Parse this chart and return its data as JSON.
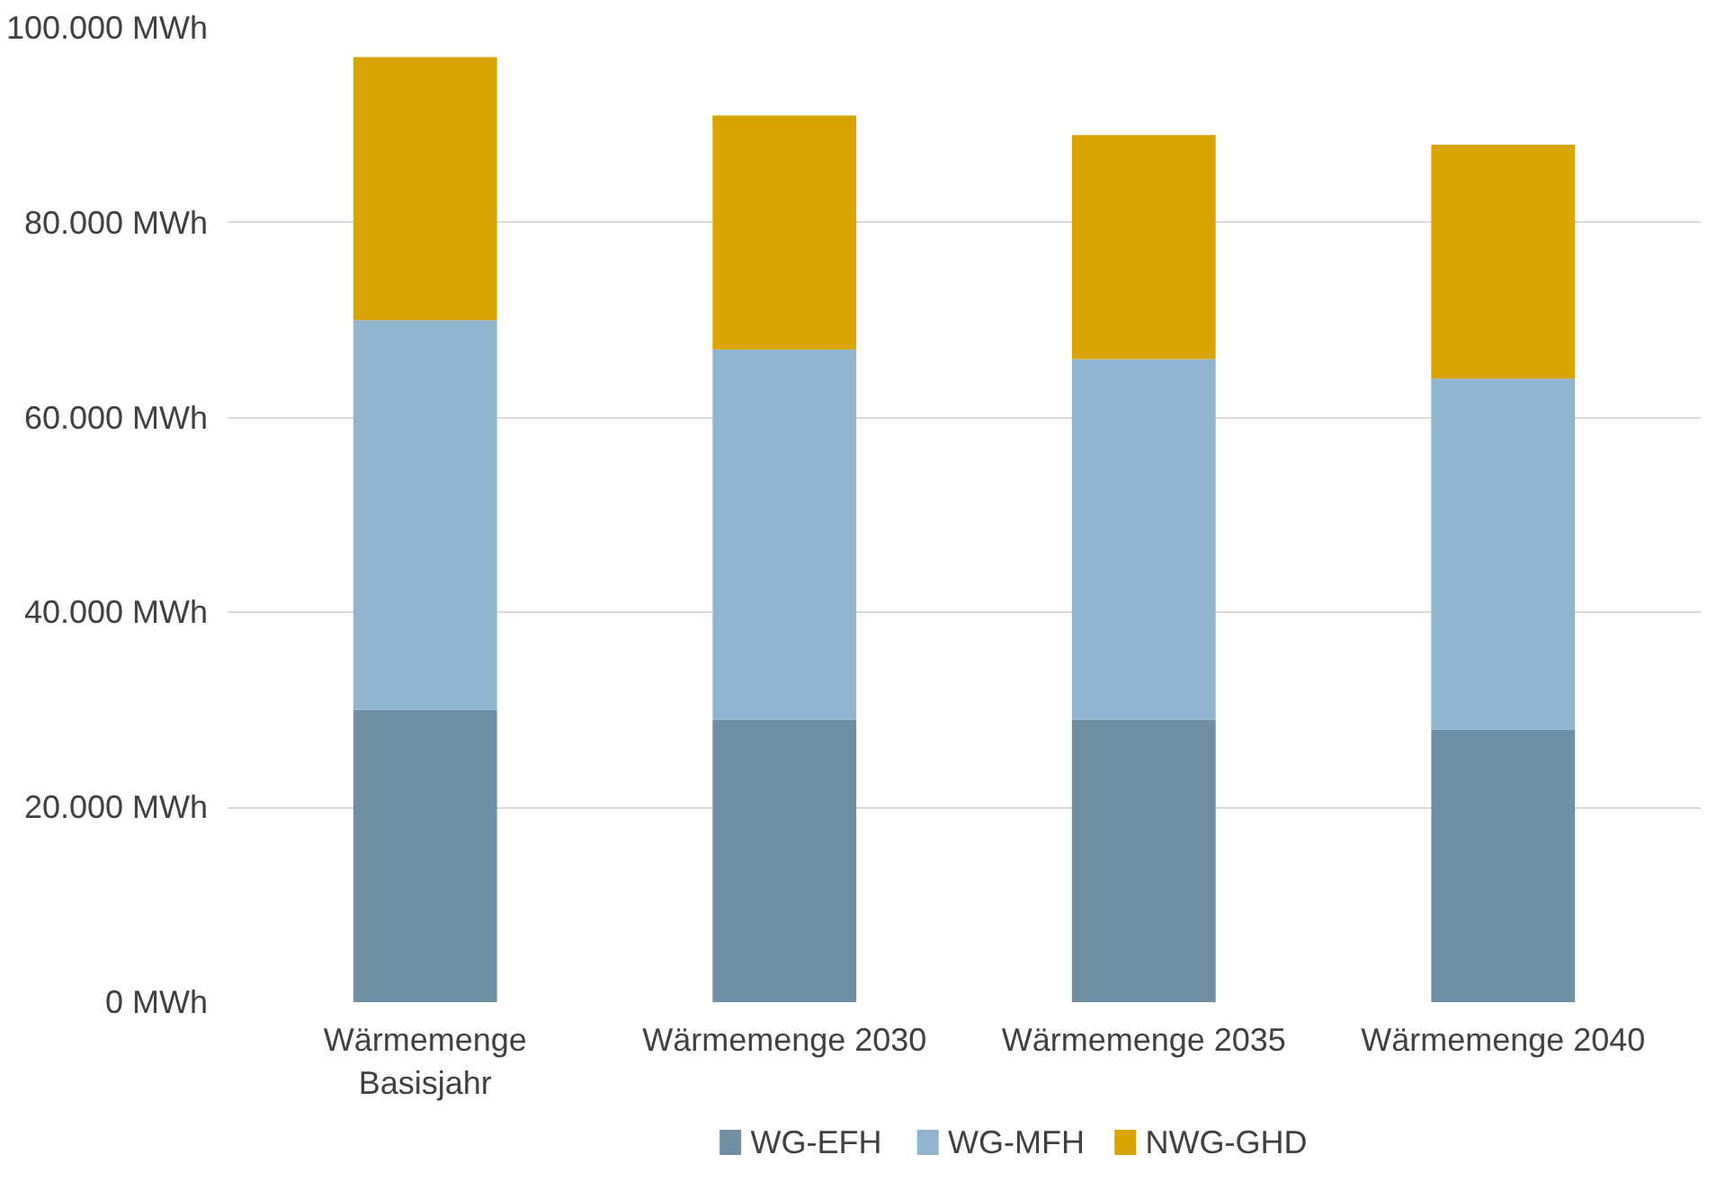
{
  "chart_data": {
    "type": "bar",
    "stacked": true,
    "categories": [
      "Wärmemenge\nBasisjahr",
      "Wärmemenge 2030",
      "Wärmemenge 2035",
      "Wärmemenge 2040"
    ],
    "series": [
      {
        "name": "WG-EFH",
        "color": "#6f8fa5",
        "values": [
          30000,
          29000,
          29000,
          28000
        ]
      },
      {
        "name": "WG-MFH",
        "color": "#8fb5cf",
        "values": [
          40000,
          38000,
          37000,
          36000
        ]
      },
      {
        "name": "NWG-GHD",
        "color": "#d9a300",
        "values": [
          27000,
          24000,
          23000,
          24000
        ]
      }
    ],
    "ylim": [
      0,
      100000
    ],
    "yticks": [
      {
        "value": 0,
        "label": "0 MWh"
      },
      {
        "value": 20000,
        "label": "20.000 MWh"
      },
      {
        "value": 40000,
        "label": "40.000 MWh"
      },
      {
        "value": 60000,
        "label": "60.000 MWh"
      },
      {
        "value": 80000,
        "label": "80.000 MWh"
      },
      {
        "value": 100000,
        "label": "100.000 MWh"
      }
    ],
    "grid": "y",
    "legend": "bottom"
  }
}
